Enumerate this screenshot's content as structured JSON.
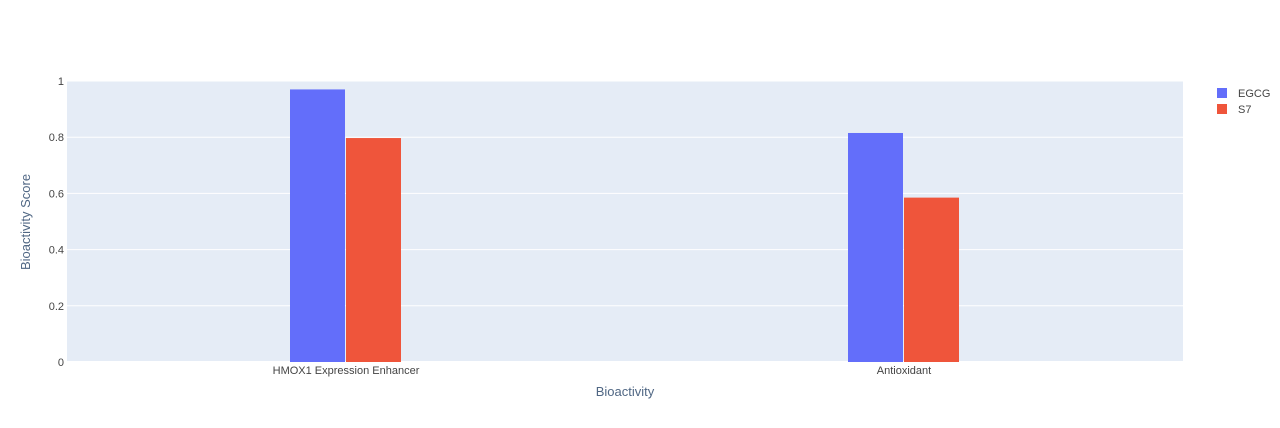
{
  "chart_data": {
    "type": "bar",
    "categories": [
      "HMOX1 Expression Enhancer",
      "Antioxidant"
    ],
    "series": [
      {
        "name": "EGCG",
        "values": [
          0.97,
          0.815
        ],
        "color": "#636efa"
      },
      {
        "name": "S7",
        "values": [
          0.797,
          0.585
        ],
        "color": "#ef553b"
      }
    ],
    "xlabel": "Bioactivity",
    "ylabel": "Bioactivity Score",
    "ylim": [
      0,
      1
    ],
    "yticks": [
      0,
      0.2,
      0.4,
      0.6,
      0.8,
      1
    ],
    "ytick_labels": [
      "0",
      "0.2",
      "0.4",
      "0.6",
      "0.8",
      "1"
    ],
    "grid": true,
    "legend_position": "top-right",
    "plot_background": "#e5ecf6"
  }
}
